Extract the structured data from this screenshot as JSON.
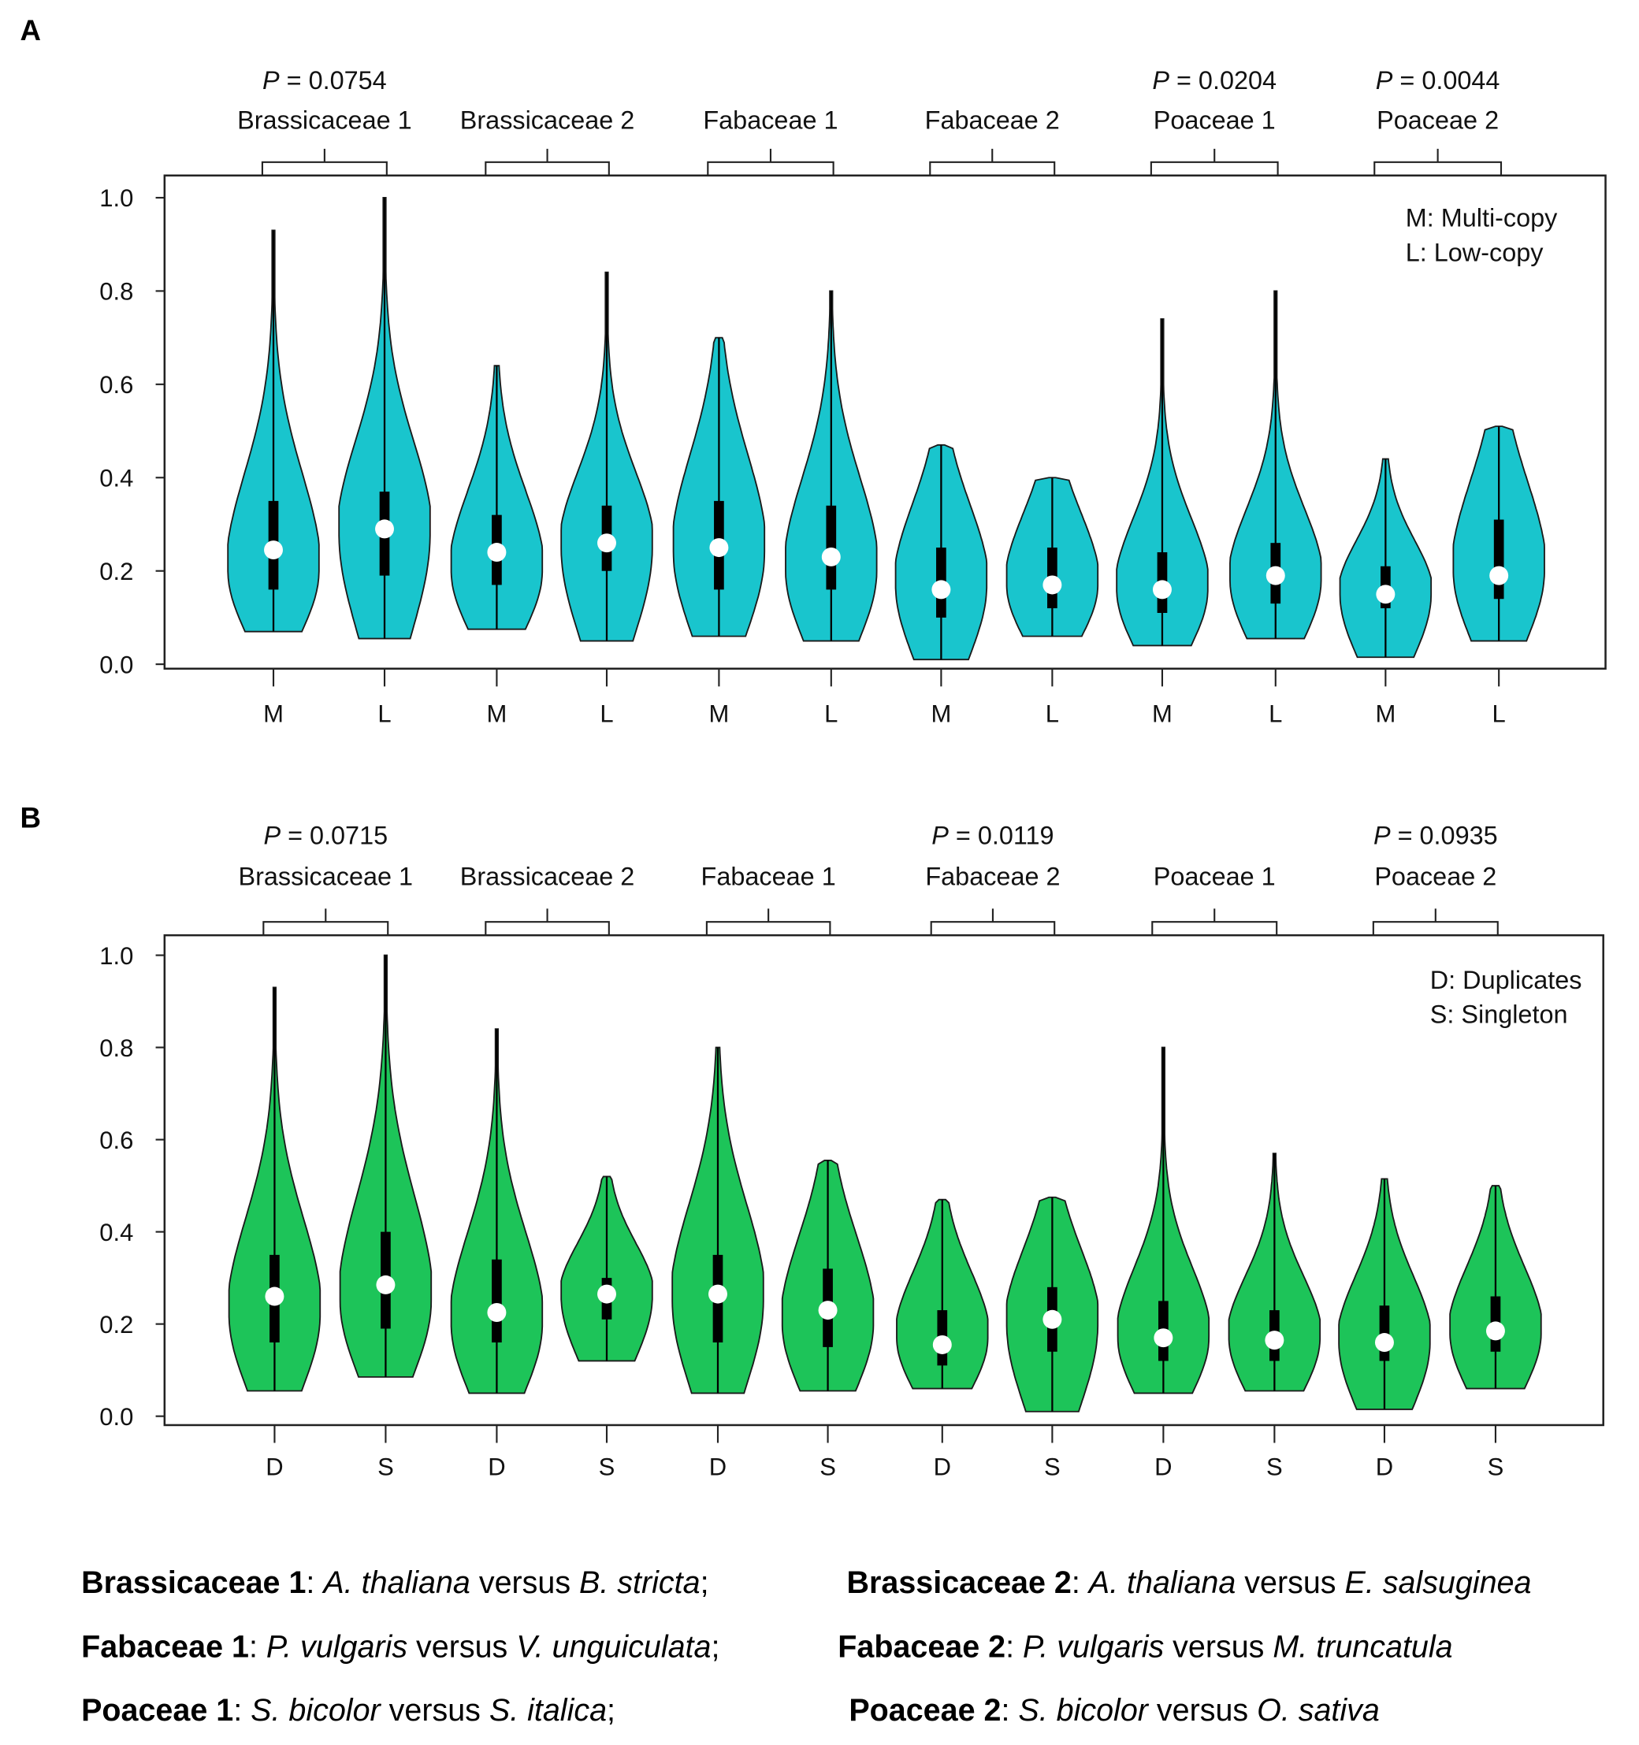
{
  "chart_data": [
    {
      "type": "violin",
      "panel_label": "A",
      "ylim": [
        0,
        1.0
      ],
      "yticks": [
        "0.0",
        "0.2",
        "0.4",
        "0.6",
        "0.8",
        "1.0"
      ],
      "fill_color": "#19C5CD",
      "legend": [
        "M: Multi-copy",
        "L: Low-copy"
      ],
      "legend_position": "top-right",
      "groups": [
        {
          "name": "Brassicaceae 1",
          "p_value": "P = 0.0754"
        },
        {
          "name": "Brassicaceae 2",
          "p_value": ""
        },
        {
          "name": "Fabaceae 1",
          "p_value": ""
        },
        {
          "name": "Fabaceae 2",
          "p_value": ""
        },
        {
          "name": "Poaceae 1",
          "p_value": "P = 0.0204"
        },
        {
          "name": "Poaceae 2",
          "p_value": "P = 0.0044"
        }
      ],
      "violins": [
        {
          "label": "M",
          "min": 0.07,
          "q1": 0.16,
          "median": 0.245,
          "q3": 0.35,
          "max": 0.93,
          "mode": 0.2
        },
        {
          "label": "L",
          "min": 0.055,
          "q1": 0.19,
          "median": 0.29,
          "q3": 0.37,
          "max": 1.0,
          "mode": 0.28
        },
        {
          "label": "M",
          "min": 0.075,
          "q1": 0.17,
          "median": 0.24,
          "q3": 0.32,
          "max": 0.64,
          "mode": 0.2
        },
        {
          "label": "L",
          "min": 0.05,
          "q1": 0.2,
          "median": 0.26,
          "q3": 0.34,
          "max": 0.84,
          "mode": 0.25
        },
        {
          "label": "M",
          "min": 0.06,
          "q1": 0.16,
          "median": 0.25,
          "q3": 0.35,
          "max": 0.7,
          "mode": 0.24
        },
        {
          "label": "L",
          "min": 0.05,
          "q1": 0.16,
          "median": 0.23,
          "q3": 0.34,
          "max": 0.8,
          "mode": 0.2
        },
        {
          "label": "M",
          "min": 0.01,
          "q1": 0.1,
          "median": 0.16,
          "q3": 0.25,
          "max": 0.47,
          "mode": 0.17
        },
        {
          "label": "L",
          "min": 0.06,
          "q1": 0.12,
          "median": 0.17,
          "q3": 0.25,
          "max": 0.4,
          "mode": 0.17
        },
        {
          "label": "M",
          "min": 0.04,
          "q1": 0.11,
          "median": 0.16,
          "q3": 0.24,
          "max": 0.74,
          "mode": 0.16
        },
        {
          "label": "L",
          "min": 0.055,
          "q1": 0.13,
          "median": 0.19,
          "q3": 0.26,
          "max": 0.8,
          "mode": 0.18
        },
        {
          "label": "M",
          "min": 0.015,
          "q1": 0.12,
          "median": 0.15,
          "q3": 0.21,
          "max": 0.44,
          "mode": 0.15
        },
        {
          "label": "L",
          "min": 0.05,
          "q1": 0.14,
          "median": 0.19,
          "q3": 0.31,
          "max": 0.51,
          "mode": 0.2
        }
      ]
    },
    {
      "type": "violin",
      "panel_label": "B",
      "ylim": [
        0,
        1.0
      ],
      "yticks": [
        "0.0",
        "0.2",
        "0.4",
        "0.6",
        "0.8",
        "1.0"
      ],
      "fill_color": "#1DC459",
      "legend": [
        "D: Duplicates",
        "S: Singleton"
      ],
      "legend_position": "top-right",
      "groups": [
        {
          "name": "Brassicaceae 1",
          "p_value": "P = 0.0715"
        },
        {
          "name": "Brassicaceae 2",
          "p_value": ""
        },
        {
          "name": "Fabaceae 1",
          "p_value": ""
        },
        {
          "name": "Fabaceae 2",
          "p_value": "P = 0.0119"
        },
        {
          "name": "Poaceae 1",
          "p_value": ""
        },
        {
          "name": "Poaceae 2",
          "p_value": "P = 0.0935"
        }
      ],
      "violins": [
        {
          "label": "D",
          "min": 0.055,
          "q1": 0.16,
          "median": 0.26,
          "q3": 0.35,
          "max": 0.93,
          "mode": 0.22
        },
        {
          "label": "S",
          "min": 0.085,
          "q1": 0.19,
          "median": 0.285,
          "q3": 0.4,
          "max": 1.0,
          "mode": 0.25
        },
        {
          "label": "D",
          "min": 0.05,
          "q1": 0.16,
          "median": 0.225,
          "q3": 0.34,
          "max": 0.84,
          "mode": 0.2
        },
        {
          "label": "S",
          "min": 0.12,
          "q1": 0.21,
          "median": 0.265,
          "q3": 0.3,
          "max": 0.52,
          "mode": 0.26
        },
        {
          "label": "D",
          "min": 0.05,
          "q1": 0.16,
          "median": 0.265,
          "q3": 0.35,
          "max": 0.8,
          "mode": 0.25
        },
        {
          "label": "S",
          "min": 0.055,
          "q1": 0.15,
          "median": 0.23,
          "q3": 0.32,
          "max": 0.555,
          "mode": 0.2
        },
        {
          "label": "D",
          "min": 0.06,
          "q1": 0.11,
          "median": 0.155,
          "q3": 0.23,
          "max": 0.47,
          "mode": 0.17
        },
        {
          "label": "S",
          "min": 0.01,
          "q1": 0.14,
          "median": 0.21,
          "q3": 0.28,
          "max": 0.475,
          "mode": 0.2
        },
        {
          "label": "D",
          "min": 0.05,
          "q1": 0.12,
          "median": 0.17,
          "q3": 0.25,
          "max": 0.8,
          "mode": 0.17
        },
        {
          "label": "S",
          "min": 0.055,
          "q1": 0.12,
          "median": 0.165,
          "q3": 0.23,
          "max": 0.57,
          "mode": 0.17
        },
        {
          "label": "D",
          "min": 0.015,
          "q1": 0.12,
          "median": 0.16,
          "q3": 0.24,
          "max": 0.515,
          "mode": 0.16
        },
        {
          "label": "S",
          "min": 0.06,
          "q1": 0.14,
          "median": 0.185,
          "q3": 0.26,
          "max": 0.5,
          "mode": 0.18
        }
      ]
    }
  ],
  "footnotes": [
    {
      "group": "Brassicaceae 1",
      "sep": ": ",
      "sp1": "A. thaliana",
      "mid": " versus ",
      "sp2": "B. stricta",
      "end": ";"
    },
    {
      "group": "Brassicaceae 2",
      "sep": ": ",
      "sp1": "A. thaliana",
      "mid": " versus ",
      "sp2": "E. salsuginea",
      "end": ""
    },
    {
      "group": "Fabaceae 1",
      "sep": ": ",
      "sp1": "P. vulgaris",
      "mid": " versus ",
      "sp2": "V. unguiculata",
      "end": ";"
    },
    {
      "group": "Fabaceae 2",
      "sep": ": ",
      "sp1": "P. vulgaris",
      "mid": " versus ",
      "sp2": "M. truncatula",
      "end": ""
    },
    {
      "group": "Poaceae 1",
      "sep": ": ",
      "sp1": "S. bicolor",
      "mid": " versus ",
      "sp2": "S. italica",
      "end": ";"
    },
    {
      "group": "Poaceae 2",
      "sep": ": ",
      "sp1": "S. bicolor",
      "mid": " versus ",
      "sp2": "O. sativa",
      "end": ""
    }
  ]
}
